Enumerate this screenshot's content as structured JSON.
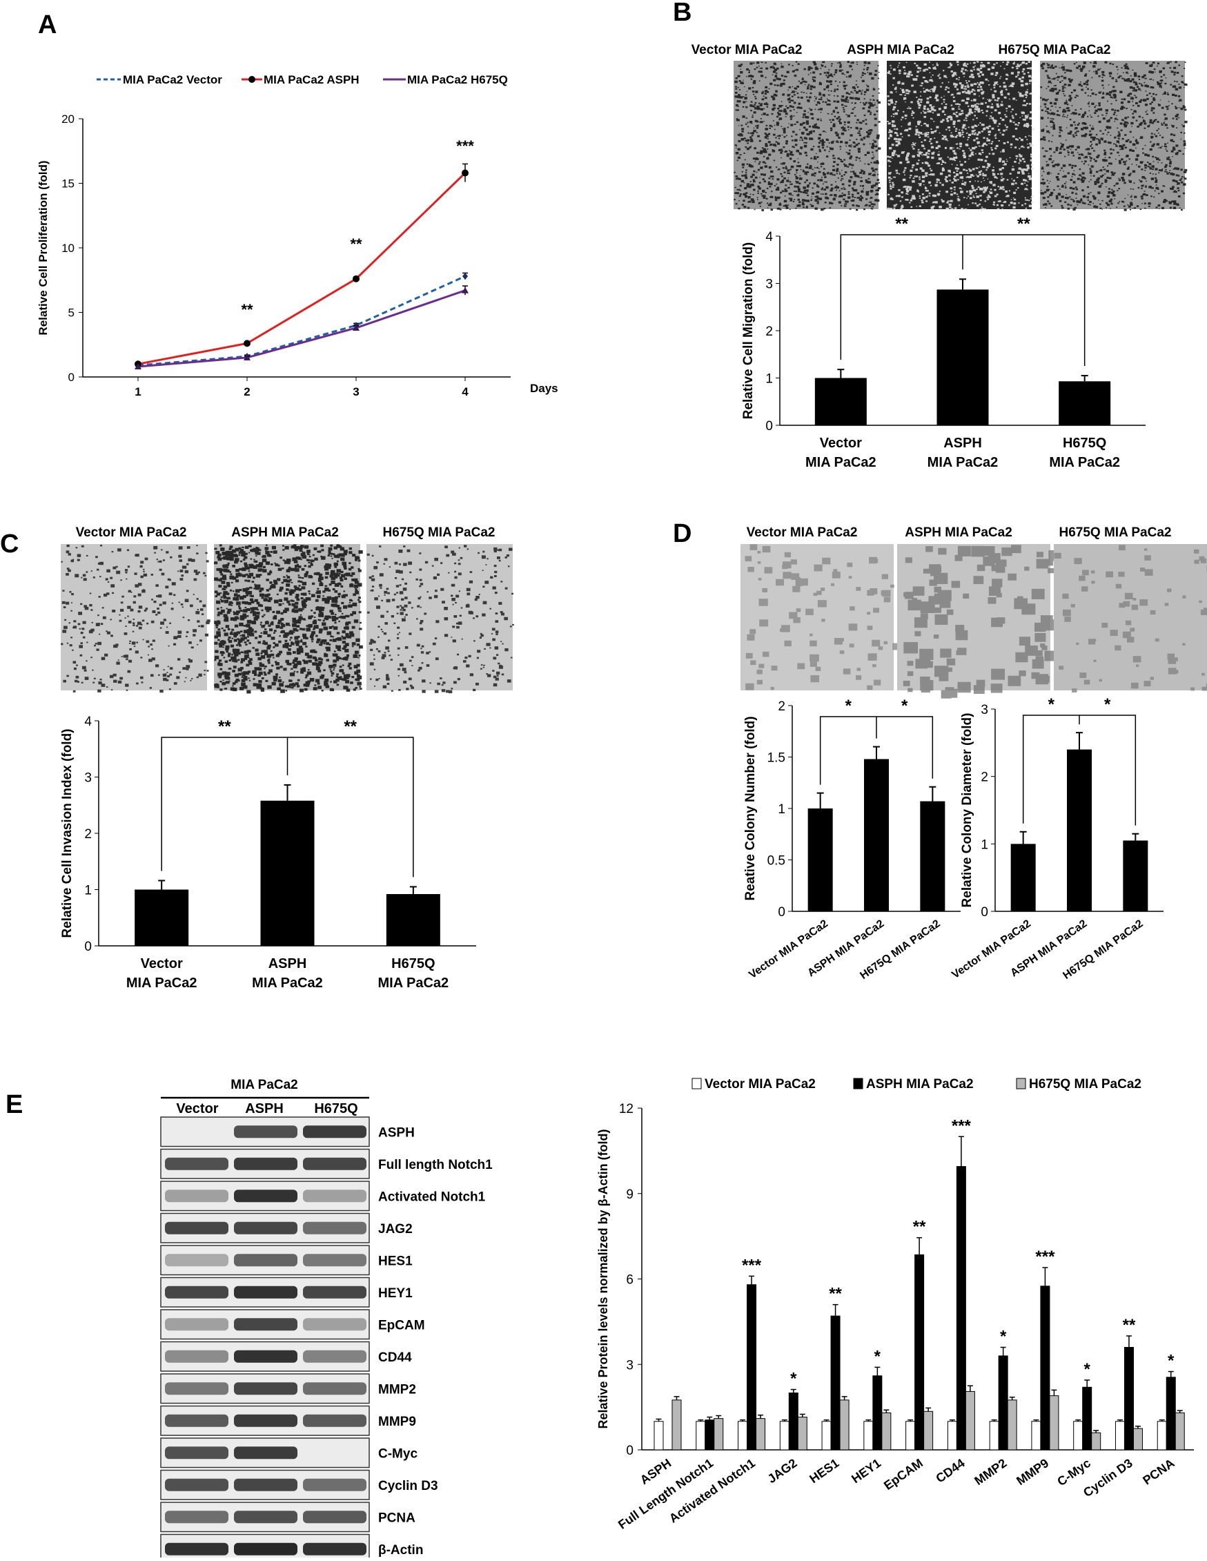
{
  "panels": {
    "A": "A",
    "B": "B",
    "C": "C",
    "D": "D",
    "E": "E"
  },
  "panel_a": {
    "legend": [
      "MIA PaCa2 Vector",
      "MIA PaCa2 ASPH",
      "MIA PaCa2 H675Q"
    ],
    "colors": [
      "#1f5fa8",
      "#e02020",
      "#6a2c8e"
    ]
  },
  "panel_b": {
    "image_labels": [
      "Vector  MIA PaCa2",
      "ASPH  MIA PaCa2",
      "H675Q  MIA PaCa2"
    ]
  },
  "panel_c": {
    "image_labels": [
      "Vector  MIA PaCa2",
      "ASPH  MIA PaCa2",
      "H675Q  MIA PaCa2"
    ]
  },
  "panel_d": {
    "image_labels": [
      "Vector  MIA PaCa2",
      "ASPH  MIA PaCa2",
      "H675Q  MIA PaCa2"
    ]
  },
  "panel_e_blot": {
    "header": "MIA PaCa2",
    "lanes": [
      "Vector",
      "ASPH",
      "H675Q"
    ],
    "rows": [
      "ASPH",
      "Full length Notch1",
      "Activated Notch1",
      "JAG2",
      "HES1",
      "HEY1",
      "EpCAM",
      "CD44",
      "MMP2",
      "MMP9",
      "C-Myc",
      "Cyclin D3",
      "PCNA",
      "β-Actin"
    ],
    "intensity": [
      [
        0.0,
        0.75,
        0.85
      ],
      [
        0.75,
        0.85,
        0.8
      ],
      [
        0.35,
        0.9,
        0.35
      ],
      [
        0.8,
        0.8,
        0.6
      ],
      [
        0.3,
        0.65,
        0.55
      ],
      [
        0.8,
        0.9,
        0.8
      ],
      [
        0.35,
        0.8,
        0.35
      ],
      [
        0.45,
        0.9,
        0.5
      ],
      [
        0.55,
        0.8,
        0.6
      ],
      [
        0.7,
        0.85,
        0.7
      ],
      [
        0.75,
        0.85,
        0.0
      ],
      [
        0.75,
        0.8,
        0.6
      ],
      [
        0.6,
        0.75,
        0.7
      ],
      [
        0.9,
        0.95,
        0.9
      ]
    ]
  },
  "chart_data": [
    {
      "id": "A",
      "type": "line",
      "x": [
        1,
        2,
        3,
        4
      ],
      "series": [
        {
          "name": "MIA PaCa2 Vector",
          "values": [
            0.9,
            1.6,
            4.0,
            7.8
          ],
          "err": [
            0.05,
            0.1,
            0.15,
            0.25
          ]
        },
        {
          "name": "MIA PaCa2 ASPH",
          "values": [
            1.0,
            2.6,
            7.6,
            15.8
          ],
          "err": [
            0.05,
            0.1,
            0.15,
            0.7
          ]
        },
        {
          "name": "MIA PaCa2 H675Q",
          "values": [
            0.8,
            1.5,
            3.8,
            6.7
          ],
          "err": [
            0.05,
            0.1,
            0.15,
            0.35
          ]
        }
      ],
      "annotations": [
        {
          "x": 2,
          "text": "**",
          "y": 4.8
        },
        {
          "x": 3,
          "text": "**",
          "y": 9.9
        },
        {
          "x": 4,
          "text": "***",
          "y": 17.5
        }
      ],
      "xlabel": "Days",
      "ylabel": "Relative Cell Proliferation (fold)",
      "ylim": [
        0,
        20
      ],
      "yticks": [
        0,
        5,
        10,
        15,
        20
      ]
    },
    {
      "id": "B",
      "type": "bar",
      "categories": [
        [
          "Vector",
          "MIA PaCa2"
        ],
        [
          "ASPH",
          "MIA PaCa2"
        ],
        [
          "H675Q",
          "MIA PaCa2"
        ]
      ],
      "values": [
        1.0,
        2.87,
        0.93
      ],
      "err": [
        0.18,
        0.22,
        0.12
      ],
      "ylabel": "Relative Cell Migration (fold)",
      "ylim": [
        0,
        4
      ],
      "yticks": [
        0,
        1,
        2,
        3,
        4
      ],
      "significance": [
        "**",
        "**"
      ]
    },
    {
      "id": "C",
      "type": "bar",
      "categories": [
        [
          "Vector",
          "MIA PaCa2"
        ],
        [
          "ASPH",
          "MIA PaCa2"
        ],
        [
          "H675Q",
          "MIA PaCa2"
        ]
      ],
      "values": [
        1.0,
        2.58,
        0.92
      ],
      "err": [
        0.16,
        0.28,
        0.13
      ],
      "ylabel": "Relative Cell Invasion Index (fold)",
      "ylim": [
        0,
        4
      ],
      "yticks": [
        0,
        1,
        2,
        3,
        4
      ],
      "significance": [
        "**",
        "**"
      ]
    },
    {
      "id": "D1",
      "type": "bar",
      "categories": [
        "Vector MIA PaCa2",
        "ASPH MIA PaCa2",
        "H675Q MIA PaCa2"
      ],
      "values": [
        1.0,
        1.48,
        1.07
      ],
      "err": [
        0.15,
        0.12,
        0.14
      ],
      "ylabel": "Reative Colony Number (fold)",
      "ylim": [
        0,
        2
      ],
      "yticks": [
        "0",
        "0.5",
        "1",
        "1.5",
        "2"
      ],
      "significance": [
        "*",
        "*"
      ]
    },
    {
      "id": "D2",
      "type": "bar",
      "categories": [
        "Vector MIA PaCa2",
        "ASPH MIA PaCa2",
        "H675Q MIA PaCa2"
      ],
      "values": [
        1.0,
        2.4,
        1.05
      ],
      "err": [
        0.18,
        0.25,
        0.1
      ],
      "ylabel": "Relative Colony Diameter (fold)",
      "ylim": [
        0,
        3
      ],
      "yticks": [
        0,
        1,
        2,
        3
      ],
      "significance": [
        "*",
        "*"
      ]
    },
    {
      "id": "E",
      "type": "bar",
      "categories": [
        "ASPH",
        "Full Length Notch1",
        "Activated Notch1",
        "JAG2",
        "HES1",
        "HEY1",
        "EpCAM",
        "CD44",
        "MMP2",
        "MMP9",
        "C-Myc",
        "Cyclin D3",
        "PCNA"
      ],
      "series": [
        {
          "name": "Vector MIA PaCa2",
          "values": [
            1.0,
            1.0,
            1.0,
            1.0,
            1.0,
            1.0,
            1.0,
            1.0,
            1.0,
            1.0,
            1.0,
            1.0,
            1.0
          ],
          "err": [
            0.08,
            0.05,
            0.05,
            0.05,
            0.05,
            0.05,
            0.05,
            0.05,
            0.05,
            0.05,
            0.05,
            0.05,
            0.05
          ],
          "fill": "#ffffff"
        },
        {
          "name": "ASPH MIA PaCa2",
          "values": [
            0.0,
            1.05,
            5.8,
            2.0,
            4.7,
            2.6,
            6.85,
            9.95,
            3.3,
            5.75,
            2.2,
            3.6,
            2.55
          ],
          "err": [
            0.0,
            0.1,
            0.3,
            0.12,
            0.4,
            0.3,
            0.6,
            1.05,
            0.3,
            0.65,
            0.25,
            0.4,
            0.2
          ],
          "fill": "#000000"
        },
        {
          "name": "H675Q MIA PaCa2",
          "values": [
            1.75,
            1.1,
            1.1,
            1.15,
            1.75,
            1.3,
            1.35,
            2.05,
            1.75,
            1.9,
            0.6,
            0.75,
            1.3
          ],
          "err": [
            0.12,
            0.1,
            0.12,
            0.1,
            0.12,
            0.1,
            0.12,
            0.2,
            0.1,
            0.2,
            0.08,
            0.08,
            0.08
          ],
          "fill": "#b8b8b8"
        }
      ],
      "significance": [
        "",
        "",
        "***",
        "*",
        "**",
        "*",
        "**",
        "***",
        "*",
        "***",
        "*",
        "**",
        "*"
      ],
      "ylabel": "Relative Protein levels normalized by β-Actin (fold)",
      "ylim": [
        0,
        12
      ],
      "yticks": [
        0,
        3,
        6,
        9,
        12
      ]
    }
  ]
}
